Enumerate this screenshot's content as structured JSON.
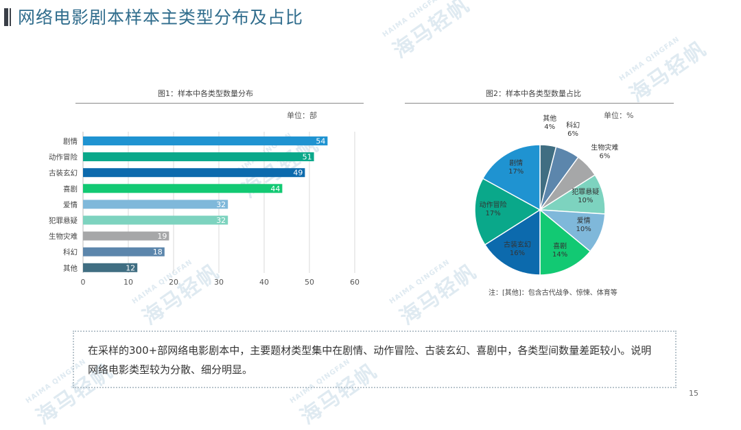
{
  "page": {
    "title": "网络电影剧本样本主类型分布及占比",
    "summary": "在采样的300+部网络电影剧本中，主要题材类型集中在剧情、动作冒险、古装玄幻、喜剧中，各类型间数量差距较小。说明网络电影类型较为分散、细分明显。",
    "page_number": "15",
    "watermark_main": "海马轻帆",
    "watermark_sub": "HAIMA QINGFAN"
  },
  "chart_data": [
    {
      "type": "bar",
      "orientation": "horizontal",
      "title": "图1：样本中各类型数量分布",
      "unit": "单位：部",
      "categories": [
        "剧情",
        "动作冒险",
        "古装玄幻",
        "喜剧",
        "爱情",
        "犯罪悬疑",
        "生物灾难",
        "科幻",
        "其他"
      ],
      "values": [
        54,
        51,
        49,
        44,
        32,
        32,
        19,
        18,
        12
      ],
      "colors": [
        "#1f93d1",
        "#0aa88a",
        "#0c6aad",
        "#12c973",
        "#7fb8da",
        "#7dd3bf",
        "#a6a7a8",
        "#5c86ac",
        "#406e82"
      ],
      "xlim": [
        0,
        60
      ],
      "xticks": [
        0,
        10,
        20,
        30,
        40,
        50,
        60
      ],
      "grid": true
    },
    {
      "type": "pie",
      "title": "图2：样本中各类型数量占比",
      "unit": "单位：%",
      "labels": [
        "其他",
        "科幻",
        "生物灾难",
        "犯罪悬疑",
        "爱情",
        "喜剧",
        "古装玄幻",
        "动作冒险",
        "剧情"
      ],
      "values": [
        4,
        6,
        6,
        10,
        10,
        14,
        16,
        17,
        17
      ],
      "value_labels": [
        "4%",
        "6%",
        "6%",
        "10%",
        "10%",
        "14%",
        "16%",
        "17%",
        "17%"
      ],
      "colors": [
        "#406e82",
        "#5c86ac",
        "#a6a7a8",
        "#7dd3bf",
        "#7fb8da",
        "#12c973",
        "#0c6aad",
        "#0aa88a",
        "#1f93d1"
      ],
      "note": "注：[其他]：包含古代战争、惊悚、体育等"
    }
  ]
}
